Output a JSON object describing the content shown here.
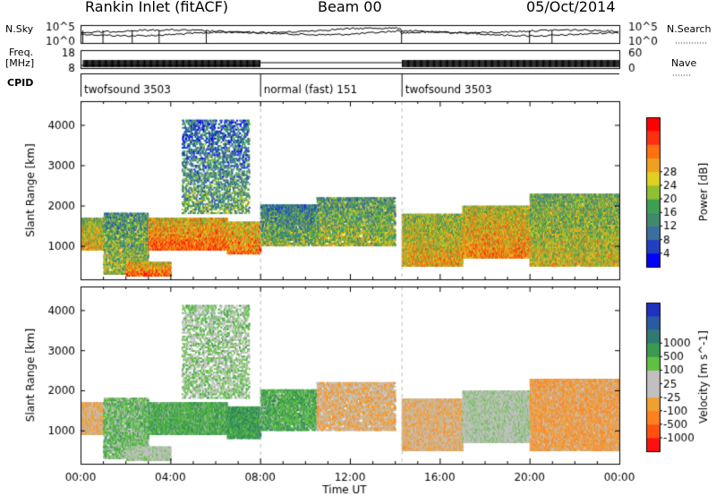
{
  "header": {
    "station": "Rankin Inlet (fitACF)",
    "beam": "Beam 00",
    "date": "05/Oct/2014"
  },
  "top_panels": {
    "nsky_label": "N.Sky",
    "nsky_ticks": [
      "10^5",
      "10^0"
    ],
    "nsearch_label": "N.Search",
    "nsearch_ticks": [
      "10^5",
      "10^0"
    ],
    "freq_label": "Freq.",
    "freq_unit": "[MHz]",
    "freq_ticks": [
      "18",
      "8"
    ],
    "nave_label": "Nave",
    "nave_ticks": [
      "60",
      "0"
    ],
    "cpid_label": "CPID",
    "cpid_segments": [
      {
        "label": "twofsound 3503",
        "start_h": 0,
        "end_h": 8
      },
      {
        "label": "normal (fast) 151",
        "start_h": 8,
        "end_h": 14.3
      },
      {
        "label": "twofsound 3503",
        "start_h": 14.3,
        "end_h": 24
      }
    ]
  },
  "x_axis": {
    "label": "Time UT",
    "ticks": [
      "00:00",
      "04:00",
      "08:00",
      "12:00",
      "16:00",
      "20:00",
      "00:00"
    ],
    "range_h": [
      0,
      24
    ]
  },
  "y_axis": {
    "label": "Slant Range [km]",
    "ticks": [
      "1000",
      "2000",
      "3000",
      "4000"
    ],
    "range_km": [
      180,
      4600
    ]
  },
  "power_colorbar": {
    "label": "Power [dB]",
    "ticks": [
      "4",
      "8",
      "12",
      "16",
      "20",
      "24",
      "28"
    ],
    "colors": [
      "#0000ff",
      "#2040c0",
      "#3a6fa0",
      "#3f8a6c",
      "#3ca050",
      "#90c030",
      "#e0d020",
      "#f0a020",
      "#ff7010",
      "#ff3010",
      "#ff0000"
    ]
  },
  "velocity_colorbar": {
    "label": "Velocity [m s^-1]",
    "ticks": [
      "1000",
      "500",
      "100",
      "25",
      "-25",
      "-100",
      "-500",
      "-1000"
    ],
    "colors": [
      "#2030c0",
      "#2a5aa0",
      "#2f7a70",
      "#3a9a50",
      "#60c040",
      "#c0c0c0",
      "#c0c0c0",
      "#f0a030",
      "#ff8020",
      "#ff5010",
      "#ff1010"
    ]
  },
  "chart_data": {
    "type": "heatmap",
    "panels": [
      "Power",
      "Velocity"
    ],
    "x_unit": "hours UT",
    "y_unit": "km",
    "echo_regions": [
      {
        "start_h": 0.0,
        "end_h": 1.0,
        "y_lo": 900,
        "y_hi": 1700,
        "density": 0.9,
        "power": 22,
        "velocity": -300
      },
      {
        "start_h": 1.0,
        "end_h": 3.0,
        "y_lo": 300,
        "y_hi": 1800,
        "density": 0.55,
        "power": 18,
        "velocity": 200
      },
      {
        "start_h": 2.0,
        "end_h": 4.0,
        "y_lo": 250,
        "y_hi": 600,
        "density": 0.8,
        "power": 26,
        "velocity": -20
      },
      {
        "start_h": 3.0,
        "end_h": 6.5,
        "y_lo": 900,
        "y_hi": 1700,
        "density": 0.85,
        "power": 26,
        "velocity": 300
      },
      {
        "start_h": 4.5,
        "end_h": 7.5,
        "y_lo": 1800,
        "y_hi": 4100,
        "density": 0.25,
        "power": 14,
        "velocity": 100
      },
      {
        "start_h": 6.5,
        "end_h": 8.0,
        "y_lo": 800,
        "y_hi": 1600,
        "density": 0.7,
        "power": 25,
        "velocity": 400
      },
      {
        "start_h": 8.0,
        "end_h": 10.5,
        "y_lo": 1000,
        "y_hi": 2000,
        "density": 0.6,
        "power": 16,
        "velocity": 300
      },
      {
        "start_h": 10.5,
        "end_h": 14.0,
        "y_lo": 1000,
        "y_hi": 2200,
        "density": 0.55,
        "power": 18,
        "velocity": -300
      },
      {
        "start_h": 14.3,
        "end_h": 17.0,
        "y_lo": 500,
        "y_hi": 1800,
        "density": 0.85,
        "power": 22,
        "velocity": -300
      },
      {
        "start_h": 17.0,
        "end_h": 20.0,
        "y_lo": 700,
        "y_hi": 2000,
        "density": 0.9,
        "power": 24,
        "velocity": -20
      },
      {
        "start_h": 20.0,
        "end_h": 24.0,
        "y_lo": 500,
        "y_hi": 2300,
        "density": 0.75,
        "power": 20,
        "velocity": -400
      }
    ]
  }
}
